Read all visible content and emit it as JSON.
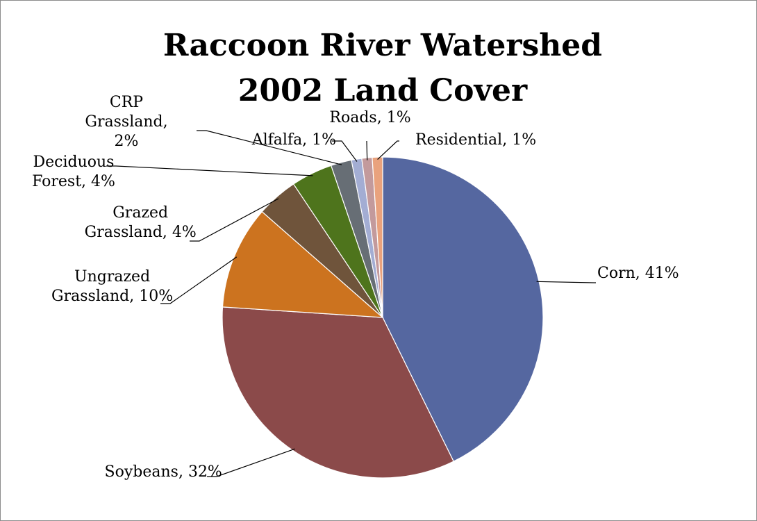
{
  "chart_data": {
    "type": "pie",
    "title": "Raccoon River Watershed 2002 Land Cover",
    "title_lines": [
      "Raccoon River Watershed",
      "2002 Land Cover"
    ],
    "start_angle_deg": 0,
    "direction": "clockwise",
    "slices": [
      {
        "name": "Corn",
        "value": 41,
        "color": "#5567A0",
        "label_lines": [
          "Corn, 41%"
        ]
      },
      {
        "name": "Soybeans",
        "value": 32,
        "color": "#8B4A4A",
        "label_lines": [
          "Soybeans, 32%"
        ]
      },
      {
        "name": "Ungrazed Grassland",
        "value": 10,
        "color": "#CC731F",
        "label_lines": [
          "Ungrazed",
          "Grassland, 10%"
        ]
      },
      {
        "name": "Grazed Grassland",
        "value": 4,
        "color": "#6F543B",
        "label_lines": [
          "Grazed",
          "Grassland, 4%"
        ]
      },
      {
        "name": "Deciduous Forest",
        "value": 4,
        "color": "#4E741C",
        "label_lines": [
          "Deciduous",
          "Forest, 4%"
        ]
      },
      {
        "name": "CRP Grassland",
        "value": 2,
        "color": "#676E75",
        "label_lines": [
          "CRP",
          "Grassland,",
          "2%"
        ]
      },
      {
        "name": "Alfalfa",
        "value": 1,
        "color": "#A3ADD3",
        "label_lines": [
          "Alfalfa, 1%"
        ]
      },
      {
        "name": "Roads",
        "value": 1,
        "color": "#C39A9C",
        "label_lines": [
          "Roads, 1%"
        ]
      },
      {
        "name": "Residential",
        "value": 1,
        "color": "#E9A27D",
        "label_lines": [
          "Residential, 1%"
        ]
      }
    ]
  }
}
